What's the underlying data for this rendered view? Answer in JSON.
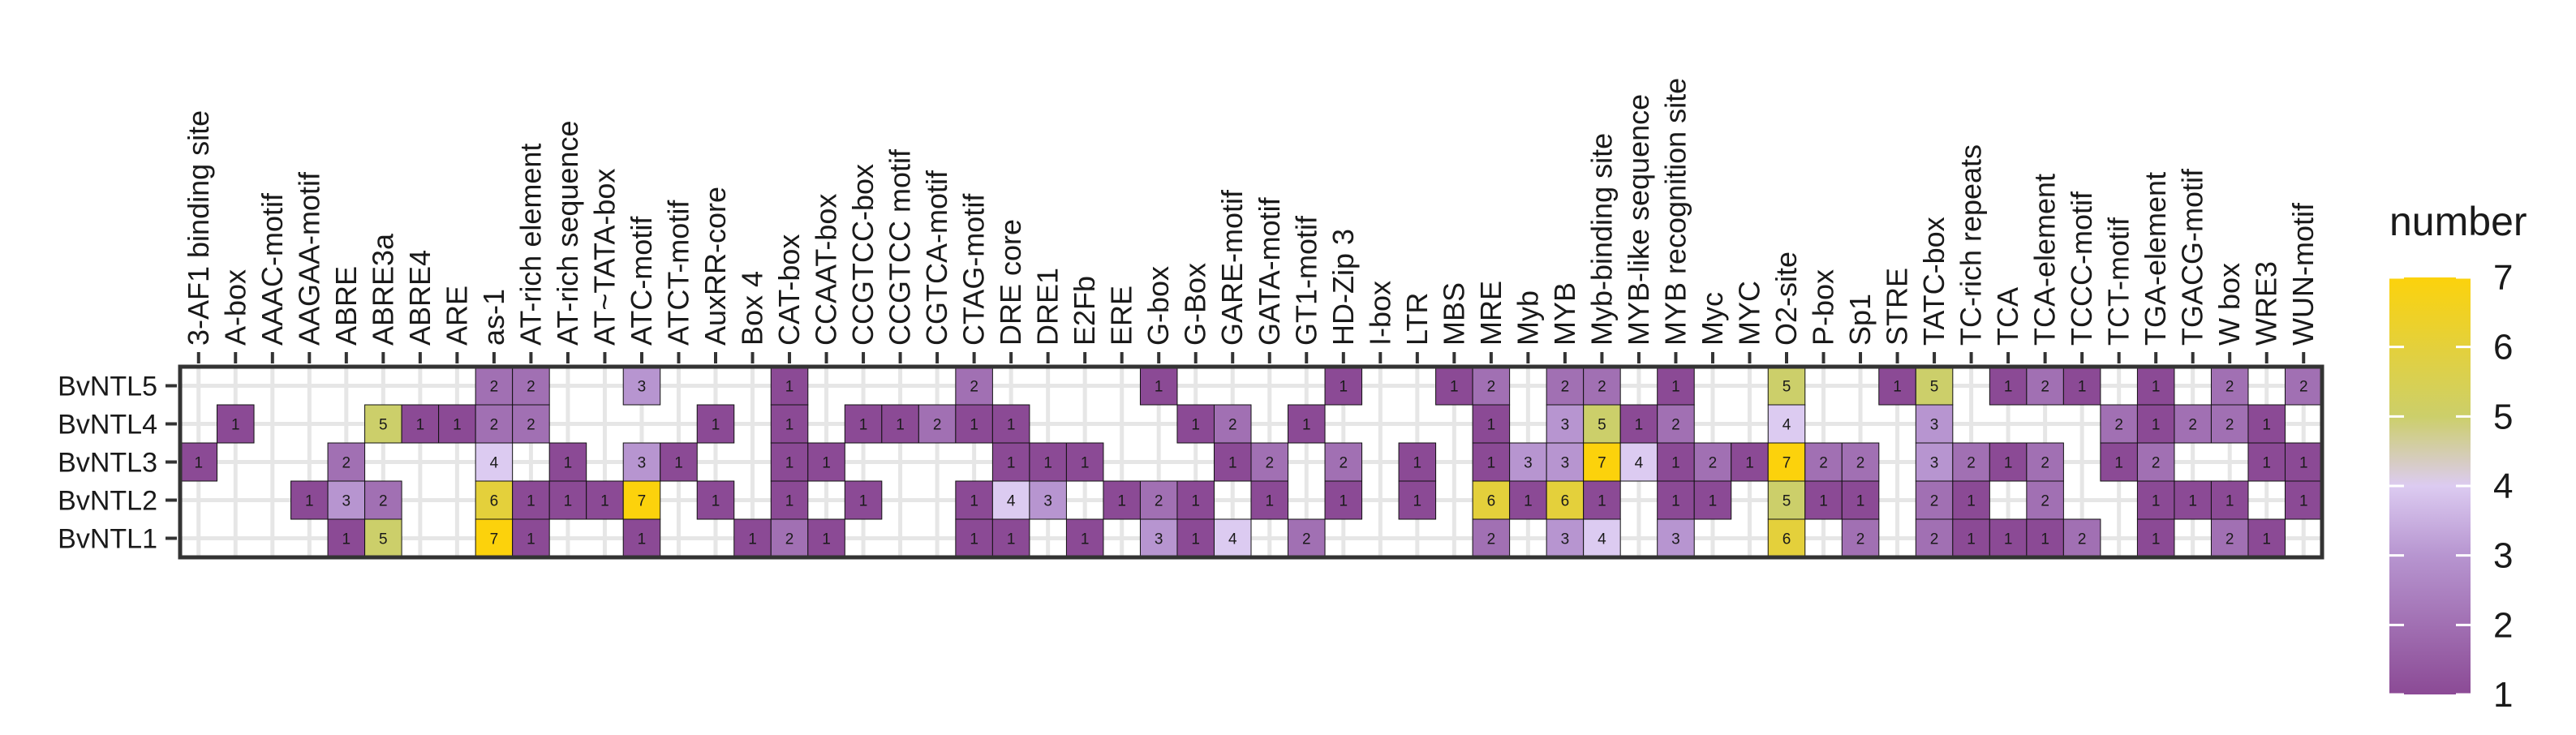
{
  "chart_data": {
    "type": "heatmap",
    "title": "",
    "xlabel": "",
    "ylabel": "",
    "legend_title": "number",
    "color_range": [
      1,
      7
    ],
    "legend_ticks": [
      "1",
      "2",
      "3",
      "4",
      "5",
      "6",
      "7"
    ],
    "colors": {
      "low": "#8b4a95",
      "mid": "#dccbf1",
      "high": "#fcd20c",
      "grid": "#e6e6e6",
      "border": "#333333"
    },
    "x_categories": [
      "3-AF1 binding site",
      "A-box",
      "AAAC-motif",
      "AAGAA-motif",
      "ABRE",
      "ABRE3a",
      "ABRE4",
      "ARE",
      "as-1",
      "AT-rich element",
      "AT-rich sequence",
      "AT~TATA-box",
      "ATC-motif",
      "ATCT-motif",
      "AuxRR-core",
      "Box 4",
      "CAT-box",
      "CCAAT-box",
      "CCGTCC-box",
      "CCGTCC motif",
      "CGTCA-motif",
      "CTAG-motif",
      "DRE core",
      "DRE1",
      "E2Fb",
      "ERE",
      "G-box",
      "G-Box",
      "GARE-motif",
      "GATA-motif",
      "GT1-motif",
      "HD-Zip 3",
      "I-box",
      "LTR",
      "MBS",
      "MRE",
      "Myb",
      "MYB",
      "Myb-binding site",
      "MYB-like sequence",
      "MYB recognition site",
      "Myc",
      "MYC",
      "O2-site",
      "P-box",
      "Sp1",
      "STRE",
      "TATC-box",
      "TC-rich repeats",
      "TCA",
      "TCA-element",
      "TCCC-motif",
      "TCT-motif",
      "TGA-element",
      "TGACG-motif",
      "W box",
      "WRE3",
      "WUN-motif"
    ],
    "y_categories": [
      "BvNTL5",
      "BvNTL4",
      "BvNTL3",
      "BvNTL2",
      "BvNTL1"
    ],
    "series": [
      {
        "name": "BvNTL5",
        "values": [
          0,
          0,
          0,
          0,
          0,
          0,
          0,
          0,
          2,
          2,
          0,
          0,
          3,
          0,
          0,
          0,
          1,
          0,
          0,
          0,
          0,
          2,
          0,
          0,
          0,
          0,
          1,
          0,
          0,
          0,
          0,
          1,
          0,
          0,
          1,
          2,
          0,
          2,
          2,
          0,
          1,
          0,
          0,
          5,
          0,
          0,
          1,
          5,
          0,
          1,
          2,
          1,
          0,
          1,
          0,
          2,
          0,
          2
        ]
      },
      {
        "name": "BvNTL4",
        "values": [
          0,
          1,
          0,
          0,
          0,
          5,
          1,
          1,
          2,
          2,
          0,
          0,
          0,
          0,
          1,
          0,
          1,
          0,
          1,
          1,
          2,
          1,
          1,
          0,
          0,
          0,
          0,
          1,
          2,
          0,
          1,
          0,
          0,
          0,
          0,
          1,
          0,
          3,
          5,
          1,
          2,
          0,
          0,
          4,
          0,
          0,
          0,
          3,
          0,
          0,
          0,
          0,
          2,
          1,
          2,
          2,
          1,
          0
        ]
      },
      {
        "name": "BvNTL3",
        "values": [
          1,
          0,
          0,
          0,
          2,
          0,
          0,
          0,
          4,
          0,
          1,
          0,
          3,
          1,
          0,
          0,
          1,
          1,
          0,
          0,
          0,
          0,
          1,
          1,
          1,
          0,
          0,
          0,
          1,
          2,
          0,
          2,
          0,
          1,
          0,
          1,
          3,
          3,
          7,
          4,
          1,
          2,
          1,
          7,
          2,
          2,
          0,
          3,
          2,
          1,
          2,
          0,
          1,
          2,
          0,
          0,
          1,
          1
        ]
      },
      {
        "name": "BvNTL2",
        "values": [
          0,
          0,
          0,
          1,
          3,
          2,
          0,
          0,
          6,
          1,
          1,
          1,
          7,
          0,
          1,
          0,
          1,
          0,
          1,
          0,
          0,
          1,
          4,
          3,
          0,
          1,
          2,
          1,
          0,
          1,
          0,
          1,
          0,
          1,
          0,
          6,
          1,
          6,
          1,
          0,
          1,
          1,
          0,
          5,
          1,
          1,
          0,
          2,
          1,
          0,
          2,
          0,
          0,
          1,
          1,
          1,
          0,
          1
        ]
      },
      {
        "name": "BvNTL1",
        "values": [
          0,
          0,
          0,
          0,
          1,
          5,
          0,
          0,
          7,
          1,
          0,
          0,
          1,
          0,
          0,
          1,
          2,
          1,
          0,
          0,
          0,
          1,
          1,
          0,
          1,
          0,
          3,
          1,
          4,
          0,
          2,
          0,
          0,
          0,
          0,
          2,
          0,
          3,
          4,
          0,
          3,
          0,
          0,
          6,
          0,
          2,
          0,
          2,
          1,
          1,
          1,
          2,
          0,
          1,
          0,
          2,
          1,
          0
        ]
      }
    ]
  }
}
